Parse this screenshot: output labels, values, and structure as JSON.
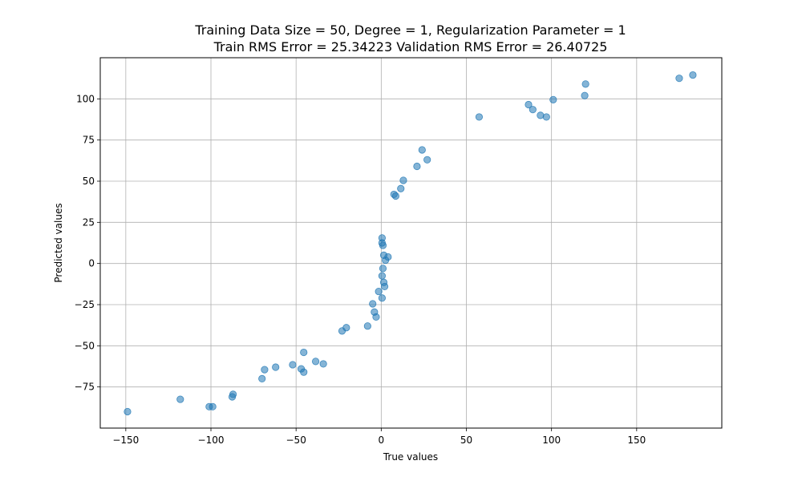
{
  "chart_data": {
    "type": "scatter",
    "title": "Training Data Size = 50, Degree = 1, Regularization Parameter = 1",
    "subtitle": "Train RMS Error = 25.34223 Validation RMS Error = 26.40725",
    "xlabel": "True values",
    "ylabel": "Predicted values",
    "xlim": [
      -165,
      200
    ],
    "ylim": [
      -100,
      125
    ],
    "xticks": [
      -150,
      -100,
      -50,
      0,
      50,
      100,
      150
    ],
    "yticks": [
      -75,
      -50,
      -25,
      0,
      25,
      50,
      75,
      100
    ],
    "grid": true,
    "point_color": "#1f77b4",
    "points": [
      {
        "x": -149,
        "y": -90
      },
      {
        "x": -118,
        "y": -82.5
      },
      {
        "x": -101,
        "y": -87
      },
      {
        "x": -99,
        "y": -87
      },
      {
        "x": -87.5,
        "y": -81
      },
      {
        "x": -87,
        "y": -79.5
      },
      {
        "x": -70,
        "y": -70
      },
      {
        "x": -68.5,
        "y": -64.5
      },
      {
        "x": -62,
        "y": -63
      },
      {
        "x": -52,
        "y": -61.5
      },
      {
        "x": -47,
        "y": -64
      },
      {
        "x": -45.5,
        "y": -66
      },
      {
        "x": -45.5,
        "y": -54
      },
      {
        "x": -38.5,
        "y": -59.5
      },
      {
        "x": -34,
        "y": -61
      },
      {
        "x": -23,
        "y": -41
      },
      {
        "x": -20.5,
        "y": -39
      },
      {
        "x": -8,
        "y": -38
      },
      {
        "x": -5,
        "y": -24.5
      },
      {
        "x": -4,
        "y": -29.5
      },
      {
        "x": -3,
        "y": -32.5
      },
      {
        "x": -1.5,
        "y": -17
      },
      {
        "x": 0.5,
        "y": -21
      },
      {
        "x": 0.5,
        "y": -7.5
      },
      {
        "x": 1,
        "y": -3
      },
      {
        "x": 1.5,
        "y": -11.5
      },
      {
        "x": 2,
        "y": -14
      },
      {
        "x": 1.5,
        "y": 5
      },
      {
        "x": 2.5,
        "y": 2
      },
      {
        "x": 4,
        "y": 4
      },
      {
        "x": 0.5,
        "y": 12.5
      },
      {
        "x": 0.5,
        "y": 15.5
      },
      {
        "x": 1,
        "y": 11
      },
      {
        "x": 7.5,
        "y": 42
      },
      {
        "x": 8.5,
        "y": 41
      },
      {
        "x": 11.5,
        "y": 45.5
      },
      {
        "x": 13,
        "y": 50.5
      },
      {
        "x": 21,
        "y": 59
      },
      {
        "x": 24,
        "y": 69
      },
      {
        "x": 27,
        "y": 63
      },
      {
        "x": 57.5,
        "y": 89
      },
      {
        "x": 86.5,
        "y": 96.5
      },
      {
        "x": 89,
        "y": 93.5
      },
      {
        "x": 93.5,
        "y": 90
      },
      {
        "x": 97,
        "y": 89
      },
      {
        "x": 101,
        "y": 99.5
      },
      {
        "x": 119.5,
        "y": 102
      },
      {
        "x": 120,
        "y": 109
      },
      {
        "x": 175,
        "y": 112.5
      },
      {
        "x": 183,
        "y": 114.5
      }
    ]
  }
}
